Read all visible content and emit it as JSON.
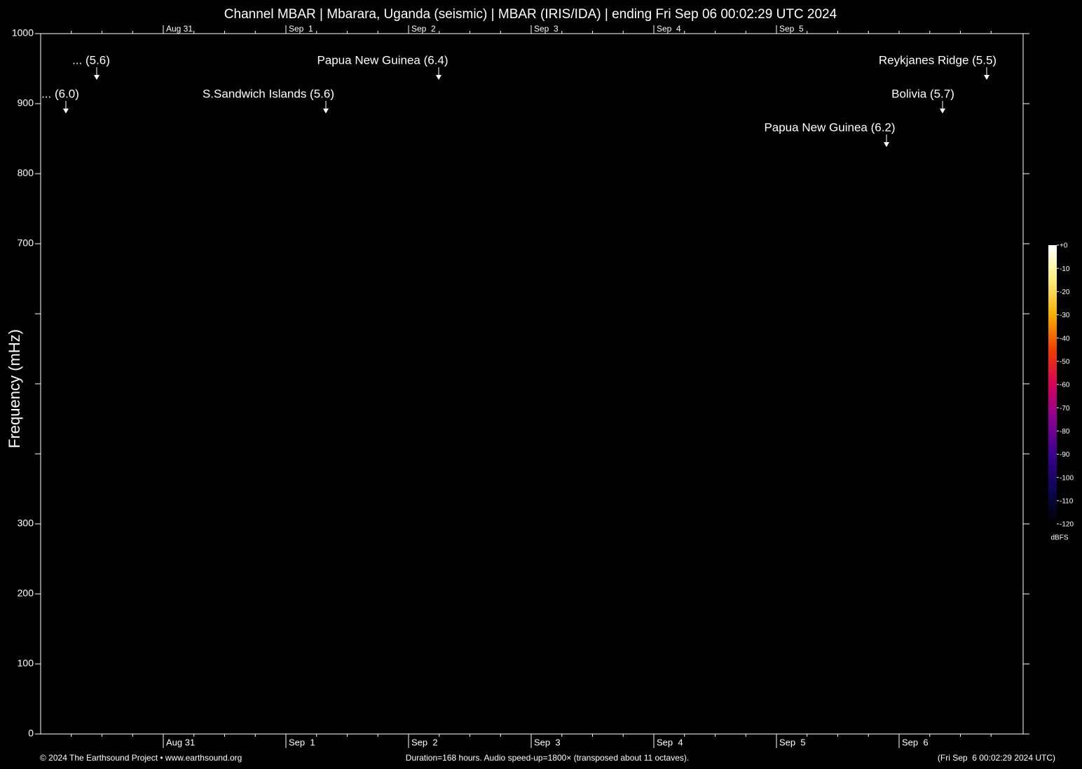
{
  "chart_data": {
    "type": "spectrogram",
    "title": "Channel MBAR | Mbarara, Uganda (seismic) | MBAR (IRIS/IDA) | ending Fri Sep 06 00:02:29 UTC 2024",
    "y_label": "Frequency (mHz)",
    "ylim": [
      0,
      1000
    ],
    "yticks": [
      0,
      100,
      200,
      300,
      700,
      800,
      900,
      1000
    ],
    "minor_yticks": [
      400,
      500,
      600
    ],
    "xticks": [
      "Aug 31",
      "Sep  1",
      "Sep  2",
      "Sep  3",
      "Sep  4",
      "Sep  5",
      "Sep  6"
    ],
    "top_xticks": [
      "Aug 31",
      "Sep  1",
      "Sep  2",
      "Sep  3",
      "Sep  4",
      "Sep  5"
    ],
    "annotations": [
      "... (5.6)",
      "... (6.0)",
      "Papua New Guinea (6.4)",
      "S.Sandwich Islands (5.6)",
      "Reykjanes Ridge (5.5)",
      "Bolivia (5.7)",
      "Papua New Guinea (6.2)"
    ],
    "colorbar": {
      "label": "dBFS",
      "lim": [
        -120,
        0
      ],
      "ticks": [
        {
          "value": 0,
          "label": "+0"
        },
        -10,
        -20,
        -30,
        -40,
        -50,
        -60,
        -70,
        -80,
        -90,
        -100,
        -110,
        -120
      ]
    },
    "footer": {
      "left": "© 2024 The Earthsound Project • www.earthsound.org",
      "center": "Duration=168 hours. Audio speed-up=1800× (transposed about 11 octaves).",
      "right": "(Fri Sep  6 00:02:29 2024 UTC)"
    }
  }
}
